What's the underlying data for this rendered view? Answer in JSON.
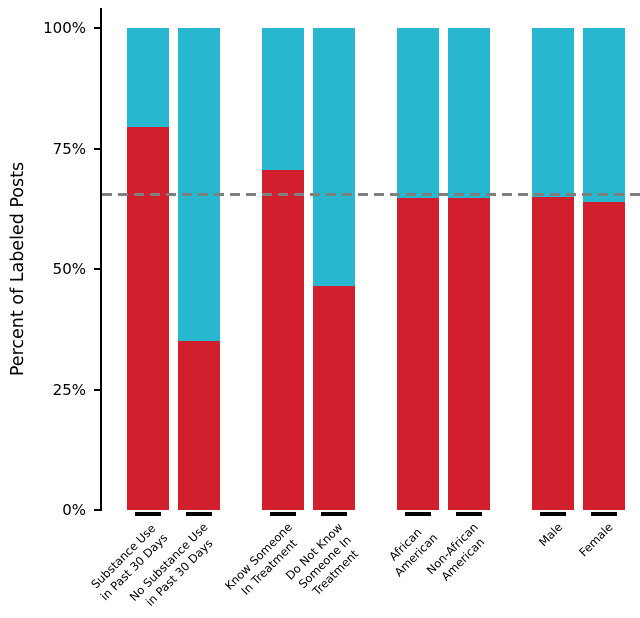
{
  "chart_data": {
    "type": "bar",
    "stacked": true,
    "title": "",
    "xlabel": "",
    "ylabel": "Percent of Labeled Posts",
    "ylim": [
      0,
      100
    ],
    "grid": false,
    "legend": null,
    "yticks": [
      {
        "value": 0,
        "label": "0%"
      },
      {
        "value": 25,
        "label": "25%"
      },
      {
        "value": 50,
        "label": "50%"
      },
      {
        "value": 75,
        "label": "75%"
      },
      {
        "value": 100,
        "label": "100%"
      }
    ],
    "categories": [
      "Substance Use\nin Past 30 Days",
      "No Substance Use\nin Past 30 Days",
      "Know Someone\nIn Treatment",
      "Do Not Know\nSomeone In\nTreatment",
      "African\nAmerican",
      "Non-African\nAmerican",
      "Male",
      "Female"
    ],
    "groups": [
      [
        0,
        1
      ],
      [
        2,
        3
      ],
      [
        4,
        5
      ],
      [
        6,
        7
      ]
    ],
    "series": [
      {
        "name": "red",
        "color": "#d21f2d",
        "values": [
          79.5,
          35,
          70.5,
          46.5,
          64.8,
          64.8,
          65.0,
          64.0
        ]
      },
      {
        "name": "cyan",
        "color": "#27b7ce",
        "values": [
          20.5,
          65,
          29.5,
          53.5,
          35.2,
          35.2,
          35.0,
          36.0
        ]
      }
    ],
    "reference_line": {
      "y": 65.5,
      "style": "dashed",
      "color": "#7f7f7f"
    }
  }
}
